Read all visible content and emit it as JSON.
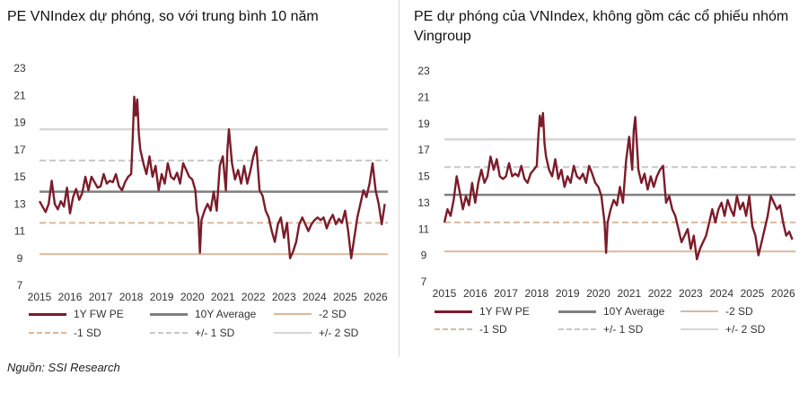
{
  "charts_common": {
    "x_ticks": [
      "2015",
      "2016",
      "2017",
      "2018",
      "2019",
      "2020",
      "2021",
      "2022",
      "2023",
      "2024",
      "2025",
      "2026"
    ],
    "y_ticks": [
      7,
      9,
      11,
      13,
      15,
      17,
      19,
      21,
      23
    ],
    "ylim": [
      7,
      23
    ],
    "colors": {
      "pe": "#7b1c2a",
      "avg": "#7f7f7f",
      "m2sd": "#d9b99b",
      "m1sd": "#d9b99b",
      "pm1sd": "#c8c8c8",
      "pm2sd": "#d6d6d6"
    }
  },
  "legend": {
    "pe": "1Y FW PE",
    "avg": "10Y Average",
    "m2sd": "-2 SD",
    "m1sd": "-1 SD",
    "pm1sd": "+/- 1 SD",
    "pm2sd": "+/- 2 SD"
  },
  "source": "Nguồn: SSI Research",
  "chart_data": [
    {
      "type": "line",
      "title": "PE VNIndex dự phóng, so với trung bình 10 năm",
      "xlim": [
        2015,
        2026.4
      ],
      "ylim": [
        7,
        23
      ],
      "avg": 13.9,
      "plus1sd": 16.2,
      "minus1sd": 11.6,
      "plus2sd": 18.5,
      "minus2sd": 9.3,
      "series": {
        "name": "1Y FW PE",
        "x": [
          2015,
          2015.1,
          2015.2,
          2015.3,
          2015.4,
          2015.5,
          2015.6,
          2015.7,
          2015.8,
          2015.9,
          2016.0,
          2016.1,
          2016.2,
          2016.3,
          2016.4,
          2016.5,
          2016.6,
          2016.7,
          2016.8,
          2016.9,
          2017.0,
          2017.1,
          2017.2,
          2017.3,
          2017.4,
          2017.5,
          2017.6,
          2017.7,
          2017.8,
          2017.9,
          2018.0,
          2018.05,
          2018.1,
          2018.15,
          2018.2,
          2018.25,
          2018.3,
          2018.4,
          2018.5,
          2018.6,
          2018.7,
          2018.8,
          2018.9,
          2019.0,
          2019.1,
          2019.2,
          2019.3,
          2019.4,
          2019.5,
          2019.6,
          2019.7,
          2019.8,
          2019.9,
          2020.0,
          2020.1,
          2020.15,
          2020.2,
          2020.25,
          2020.3,
          2020.4,
          2020.5,
          2020.6,
          2020.7,
          2020.8,
          2020.9,
          2021.0,
          2021.1,
          2021.15,
          2021.2,
          2021.3,
          2021.4,
          2021.5,
          2021.6,
          2021.7,
          2021.8,
          2021.9,
          2022.0,
          2022.1,
          2022.2,
          2022.3,
          2022.4,
          2022.5,
          2022.6,
          2022.7,
          2022.8,
          2022.9,
          2023.0,
          2023.1,
          2023.2,
          2023.3,
          2023.4,
          2023.5,
          2023.6,
          2023.7,
          2023.8,
          2023.9,
          2024.0,
          2024.1,
          2024.2,
          2024.3,
          2024.4,
          2024.5,
          2024.6,
          2024.7,
          2024.8,
          2024.9,
          2025.0,
          2025.1,
          2025.2,
          2025.3,
          2025.4,
          2025.5,
          2025.6,
          2025.7,
          2025.8,
          2025.9,
          2026.0,
          2026.1,
          2026.2,
          2026.3
        ],
        "values": [
          13.2,
          12.8,
          12.4,
          13.0,
          14.7,
          13.0,
          12.6,
          13.2,
          12.8,
          14.2,
          12.3,
          13.5,
          14.1,
          13.3,
          13.8,
          15.0,
          14.0,
          15.0,
          14.6,
          14.2,
          14.3,
          15.2,
          14.5,
          14.7,
          14.6,
          15.2,
          14.3,
          14.0,
          14.6,
          15.0,
          15.2,
          17.8,
          20.9,
          19.5,
          20.7,
          18.2,
          17.0,
          16.0,
          15.2,
          16.5,
          15.0,
          15.8,
          14.0,
          15.2,
          14.5,
          16.0,
          15.0,
          14.8,
          15.3,
          14.5,
          16.0,
          15.5,
          15.0,
          14.8,
          14.0,
          12.5,
          12.0,
          9.4,
          11.8,
          12.5,
          13.0,
          12.5,
          13.9,
          12.5,
          15.8,
          16.5,
          14.0,
          17.0,
          18.5,
          16.0,
          14.8,
          15.5,
          14.5,
          15.8,
          14.5,
          15.4,
          16.5,
          17.2,
          14.0,
          13.6,
          12.5,
          12.0,
          11.0,
          10.2,
          11.5,
          12.0,
          10.5,
          11.6,
          9.0,
          9.5,
          10.2,
          11.5,
          12.0,
          11.5,
          11.0,
          11.5,
          11.8,
          12.0,
          11.8,
          12.0,
          11.2,
          11.8,
          12.2,
          11.5,
          11.9,
          11.6,
          12.5,
          11.0,
          9.0,
          10.5,
          12.0,
          13.0,
          14.0,
          13.5,
          14.5,
          16.0,
          14.0,
          13.0,
          11.5,
          13.0
        ]
      }
    },
    {
      "type": "line",
      "title": "PE dự phóng của VNIndex, không gồm các cổ phiếu nhóm Vingroup",
      "xlim": [
        2015,
        2026.4
      ],
      "ylim": [
        7,
        23
      ],
      "avg": 13.6,
      "plus1sd": 15.7,
      "minus1sd": 11.5,
      "plus2sd": 17.8,
      "minus2sd": 9.3,
      "series": {
        "name": "1Y FW PE",
        "x": [
          2015,
          2015.1,
          2015.2,
          2015.3,
          2015.4,
          2015.5,
          2015.6,
          2015.7,
          2015.8,
          2015.9,
          2016.0,
          2016.1,
          2016.2,
          2016.3,
          2016.4,
          2016.5,
          2016.6,
          2016.7,
          2016.8,
          2016.9,
          2017.0,
          2017.1,
          2017.2,
          2017.3,
          2017.4,
          2017.5,
          2017.6,
          2017.7,
          2017.8,
          2017.9,
          2018.0,
          2018.05,
          2018.1,
          2018.15,
          2018.2,
          2018.25,
          2018.3,
          2018.4,
          2018.5,
          2018.6,
          2018.7,
          2018.8,
          2018.9,
          2019.0,
          2019.1,
          2019.2,
          2019.3,
          2019.4,
          2019.5,
          2019.6,
          2019.7,
          2019.8,
          2019.9,
          2020.0,
          2020.1,
          2020.15,
          2020.2,
          2020.25,
          2020.3,
          2020.4,
          2020.5,
          2020.6,
          2020.7,
          2020.8,
          2020.9,
          2021.0,
          2021.1,
          2021.15,
          2021.2,
          2021.3,
          2021.4,
          2021.5,
          2021.6,
          2021.7,
          2021.8,
          2021.9,
          2022.0,
          2022.1,
          2022.2,
          2022.3,
          2022.4,
          2022.5,
          2022.6,
          2022.7,
          2022.8,
          2022.9,
          2023.0,
          2023.1,
          2023.2,
          2023.3,
          2023.4,
          2023.5,
          2023.6,
          2023.7,
          2023.8,
          2023.9,
          2024.0,
          2024.1,
          2024.2,
          2024.3,
          2024.4,
          2024.5,
          2024.6,
          2024.7,
          2024.8,
          2024.9,
          2025.0,
          2025.1,
          2025.2,
          2025.3,
          2025.4,
          2025.5,
          2025.6,
          2025.7,
          2025.8,
          2025.9,
          2026.0,
          2026.1,
          2026.2,
          2026.3
        ],
        "values": [
          11.5,
          12.5,
          12.0,
          13.2,
          15.0,
          13.8,
          12.5,
          13.5,
          12.8,
          14.5,
          13.0,
          14.5,
          15.5,
          14.5,
          15.0,
          16.5,
          15.5,
          16.3,
          15.0,
          14.8,
          15.0,
          16.0,
          15.0,
          15.2,
          15.0,
          15.8,
          14.8,
          14.5,
          15.2,
          15.5,
          15.8,
          18.0,
          19.6,
          18.8,
          19.8,
          17.5,
          16.5,
          15.5,
          15.0,
          16.3,
          14.8,
          15.5,
          14.2,
          15.0,
          14.5,
          15.8,
          15.0,
          14.8,
          15.2,
          14.5,
          15.8,
          15.2,
          14.5,
          14.2,
          13.5,
          12.5,
          11.5,
          9.2,
          11.5,
          12.5,
          13.2,
          12.8,
          14.2,
          13.0,
          16.2,
          18.0,
          15.5,
          18.5,
          19.5,
          15.5,
          14.5,
          15.2,
          14.0,
          15.0,
          14.2,
          15.0,
          15.5,
          15.8,
          13.0,
          13.5,
          12.5,
          12.0,
          11.0,
          10.0,
          10.5,
          11.0,
          9.5,
          10.5,
          8.7,
          9.5,
          10.0,
          10.5,
          11.5,
          12.5,
          11.5,
          12.5,
          13.0,
          12.0,
          13.2,
          12.5,
          12.0,
          13.5,
          12.5,
          13.0,
          12.0,
          13.5,
          11.2,
          10.5,
          9.0,
          10.0,
          11.0,
          12.0,
          13.5,
          13.0,
          12.5,
          12.8,
          11.5,
          10.5,
          10.8,
          10.2
        ]
      }
    }
  ]
}
